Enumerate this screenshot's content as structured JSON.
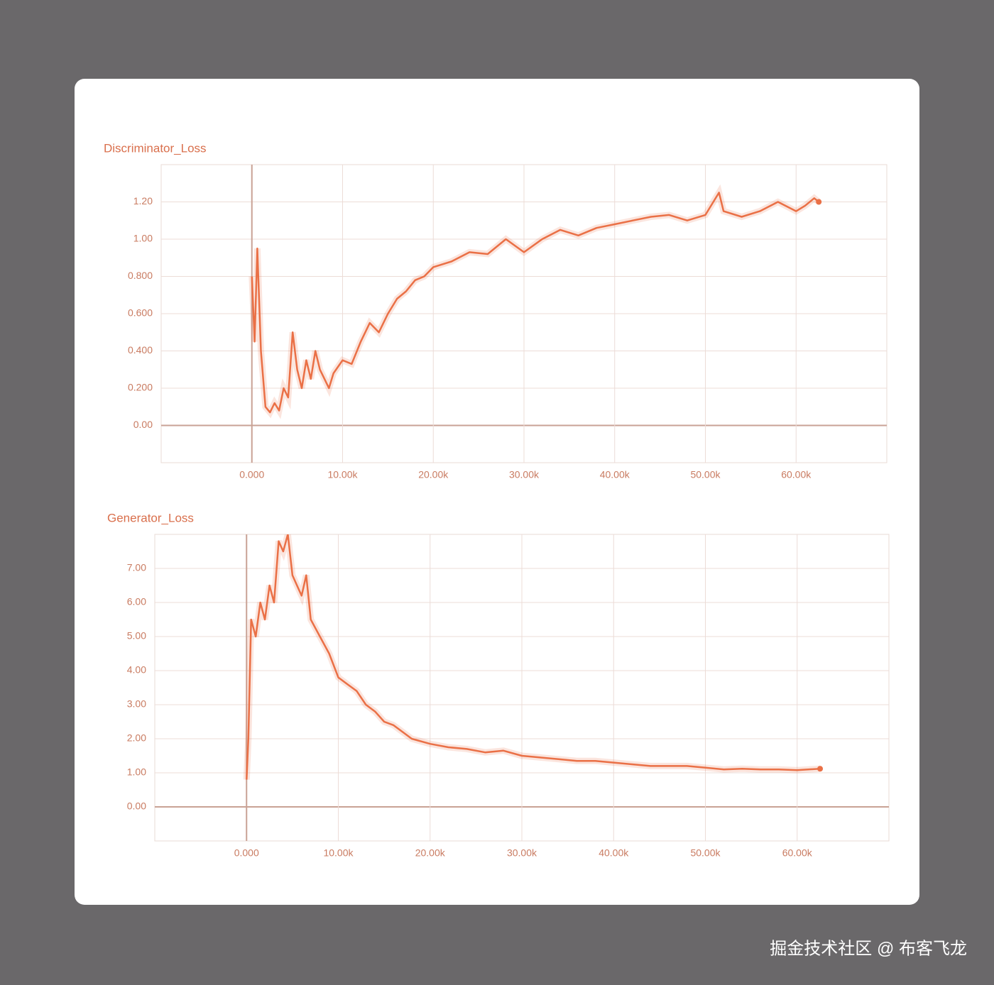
{
  "chart_data": [
    {
      "type": "line",
      "title": "Discriminator_Loss",
      "color": "#ea7046",
      "grid": true,
      "x": [
        0,
        300,
        600,
        1000,
        1500,
        2000,
        2500,
        3000,
        3500,
        4000,
        4500,
        5000,
        5500,
        6000,
        6500,
        7000,
        7500,
        8000,
        8500,
        9000,
        10000,
        11000,
        12000,
        13000,
        14000,
        15000,
        16000,
        17000,
        18000,
        19000,
        20000,
        22000,
        24000,
        26000,
        28000,
        30000,
        32000,
        34000,
        36000,
        38000,
        40000,
        42000,
        44000,
        46000,
        48000,
        50000,
        51500,
        52000,
        54000,
        56000,
        58000,
        60000,
        61000,
        62000,
        62500
      ],
      "values": [
        0.8,
        0.45,
        0.95,
        0.4,
        0.1,
        0.07,
        0.12,
        0.08,
        0.2,
        0.15,
        0.5,
        0.3,
        0.2,
        0.35,
        0.25,
        0.4,
        0.3,
        0.25,
        0.2,
        0.28,
        0.35,
        0.33,
        0.45,
        0.55,
        0.5,
        0.6,
        0.68,
        0.72,
        0.78,
        0.8,
        0.85,
        0.88,
        0.93,
        0.92,
        1.0,
        0.93,
        1.0,
        1.05,
        1.02,
        1.06,
        1.08,
        1.1,
        1.12,
        1.13,
        1.1,
        1.13,
        1.25,
        1.15,
        1.12,
        1.15,
        1.2,
        1.15,
        1.18,
        1.22,
        1.2
      ],
      "xlim": [
        -10000,
        70000
      ],
      "xticks": [
        {
          "value": 0,
          "label": "0.000"
        },
        {
          "value": 10000,
          "label": "10.00k"
        },
        {
          "value": 20000,
          "label": "20.00k"
        },
        {
          "value": 30000,
          "label": "30.00k"
        },
        {
          "value": 40000,
          "label": "40.00k"
        },
        {
          "value": 50000,
          "label": "50.00k"
        },
        {
          "value": 60000,
          "label": "60.00k"
        }
      ],
      "ylim": [
        -0.2,
        1.4
      ],
      "yticks": [
        {
          "value": 0,
          "label": "0.00"
        },
        {
          "value": 0.2,
          "label": "0.200"
        },
        {
          "value": 0.4,
          "label": "0.400"
        },
        {
          "value": 0.6,
          "label": "0.600"
        },
        {
          "value": 0.8,
          "label": "0.800"
        },
        {
          "value": 1,
          "label": "1.00"
        },
        {
          "value": 1.2,
          "label": "1.20"
        }
      ]
    },
    {
      "type": "line",
      "title": "Generator_Loss",
      "color": "#ea7046",
      "grid": true,
      "x": [
        0,
        200,
        500,
        1000,
        1500,
        2000,
        2500,
        3000,
        3500,
        4000,
        4500,
        5000,
        5500,
        6000,
        6500,
        7000,
        8000,
        9000,
        10000,
        11000,
        12000,
        13000,
        14000,
        15000,
        16000,
        17000,
        18000,
        20000,
        22000,
        24000,
        26000,
        28000,
        30000,
        32000,
        34000,
        36000,
        38000,
        40000,
        42000,
        44000,
        46000,
        48000,
        50000,
        52000,
        54000,
        56000,
        58000,
        60000,
        62500
      ],
      "values": [
        0.8,
        2.0,
        5.5,
        5.0,
        6.0,
        5.5,
        6.5,
        6.0,
        7.8,
        7.5,
        8.0,
        6.8,
        6.5,
        6.2,
        6.8,
        5.5,
        5.0,
        4.5,
        3.8,
        3.6,
        3.4,
        3.0,
        2.8,
        2.5,
        2.4,
        2.2,
        2.0,
        1.85,
        1.75,
        1.7,
        1.6,
        1.65,
        1.5,
        1.45,
        1.4,
        1.35,
        1.35,
        1.3,
        1.25,
        1.2,
        1.2,
        1.2,
        1.15,
        1.1,
        1.12,
        1.1,
        1.1,
        1.08,
        1.12
      ],
      "xlim": [
        -10000,
        70000
      ],
      "xticks": [
        {
          "value": 0,
          "label": "0.000"
        },
        {
          "value": 10000,
          "label": "10.00k"
        },
        {
          "value": 20000,
          "label": "20.00k"
        },
        {
          "value": 30000,
          "label": "30.00k"
        },
        {
          "value": 40000,
          "label": "40.00k"
        },
        {
          "value": 50000,
          "label": "50.00k"
        },
        {
          "value": 60000,
          "label": "60.00k"
        }
      ],
      "ylim": [
        -1,
        8
      ],
      "yticks": [
        {
          "value": 0,
          "label": "0.00"
        },
        {
          "value": 1,
          "label": "1.00"
        },
        {
          "value": 2,
          "label": "2.00"
        },
        {
          "value": 3,
          "label": "3.00"
        },
        {
          "value": 4,
          "label": "4.00"
        },
        {
          "value": 5,
          "label": "5.00"
        },
        {
          "value": 6,
          "label": "6.00"
        },
        {
          "value": 7,
          "label": "7.00"
        }
      ]
    }
  ],
  "watermark": "掘金技术社区 @ 布客飞龙"
}
